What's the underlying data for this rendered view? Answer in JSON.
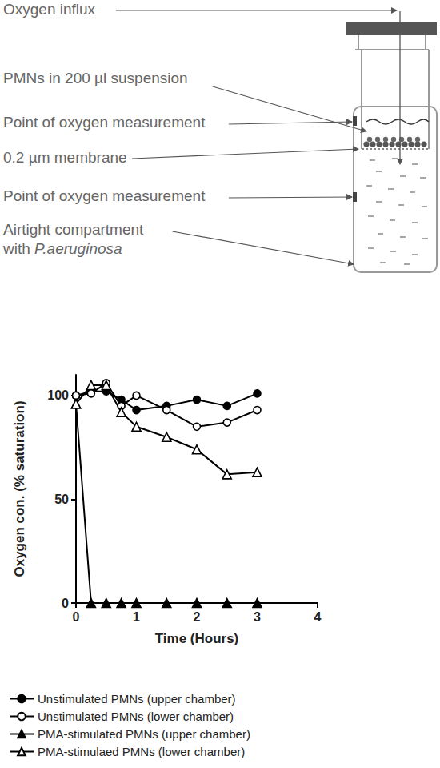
{
  "diagram": {
    "labels": [
      [
        "Oxygen influx"
      ],
      [
        "PMNs in 200 µl suspension"
      ],
      [
        "Point of oxygen measurement"
      ],
      [
        "0.2 µm membrane"
      ],
      [
        "Point of oxygen measurement"
      ],
      [
        "Airtight compartment",
        "with P.aeruginosa"
      ]
    ]
  },
  "chart_data": {
    "type": "line",
    "x_label": "Time (Hours)",
    "y_label": "Oxygen con. (% saturation)",
    "x": [
      0,
      0.25,
      0.5,
      0.75,
      1,
      1.5,
      2,
      2.5,
      3
    ],
    "xlim": [
      0,
      4
    ],
    "xticks": [
      0,
      1,
      2,
      3,
      4
    ],
    "ylim": [
      0,
      110
    ],
    "yticks": [
      0,
      50,
      100
    ],
    "grid": false,
    "legend": "bottom",
    "series": [
      {
        "name": "Unstimulated PMNs (upper chamber)",
        "color": "#000000",
        "marker": "circle",
        "values": [
          100,
          102,
          102,
          98,
          93,
          95,
          98,
          95,
          101
        ]
      },
      {
        "name": "Unstimulated PMNs (lower chamber)",
        "color": "#000000",
        "marker": "circle_open",
        "values": [
          100,
          101,
          106,
          95,
          100,
          93,
          85,
          87,
          93
        ]
      },
      {
        "name": "PMA-stimulated PMNs (upper chamber)",
        "color": "#000000",
        "marker": "triangle",
        "values": [
          96,
          0,
          0,
          0,
          0,
          0,
          0,
          0,
          0
        ]
      },
      {
        "name": "PMA-stimulaed PMNs (lower chamber)",
        "color": "#000000",
        "marker": "triangle_open",
        "values": [
          96,
          105,
          105,
          92,
          85,
          80,
          74,
          62,
          63
        ]
      }
    ]
  }
}
